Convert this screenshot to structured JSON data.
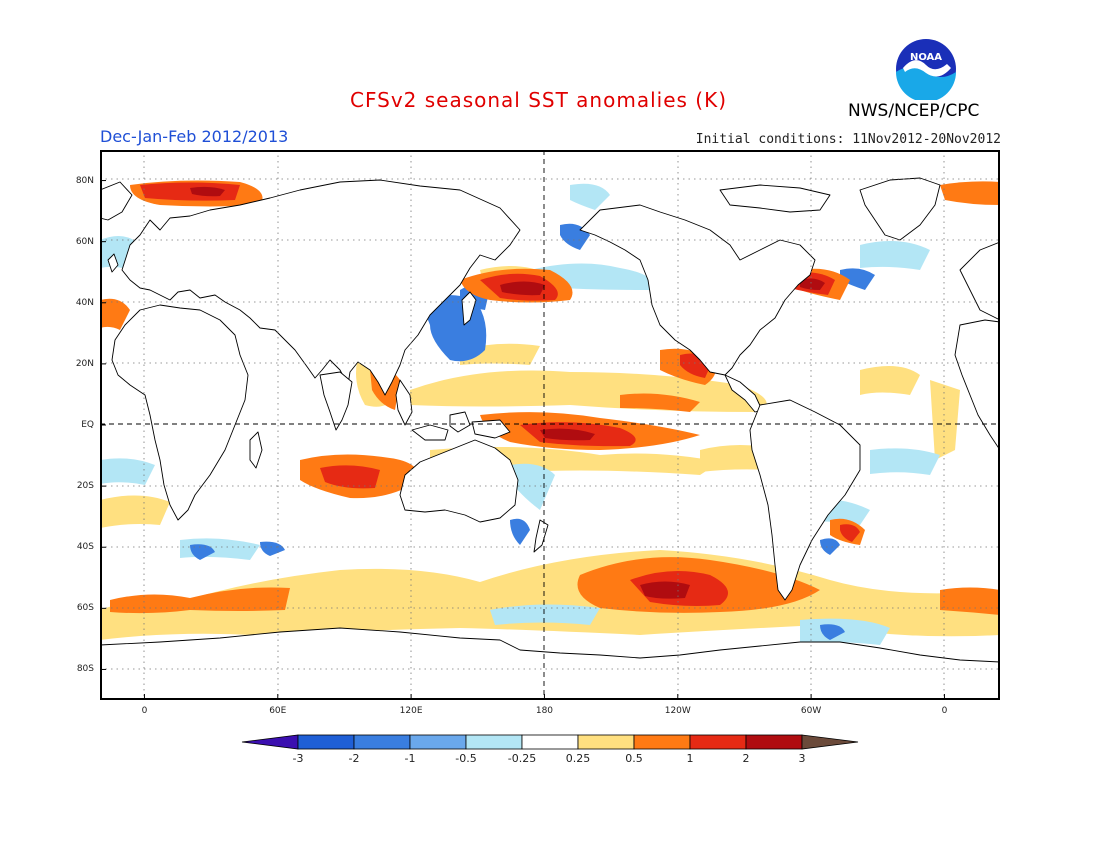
{
  "header": {
    "title": "CFSv2 seasonal SST anomalies (K)",
    "season": "Dec-Jan-Feb 2012/2013",
    "initial_conditions": "Initial conditions: 11Nov2012-20Nov2012",
    "agency": "NWS/NCEP/CPC",
    "logo_text": "NOAA"
  },
  "map": {
    "lat_labels": [
      {
        "text": "80N",
        "lat": 80
      },
      {
        "text": "60N",
        "lat": 60
      },
      {
        "text": "40N",
        "lat": 40
      },
      {
        "text": "20N",
        "lat": 20
      },
      {
        "text": "EQ",
        "lat": 0
      },
      {
        "text": "20S",
        "lat": -20
      },
      {
        "text": "40S",
        "lat": -40
      },
      {
        "text": "60S",
        "lat": -60
      },
      {
        "text": "80S",
        "lat": -80
      }
    ],
    "lon_labels": [
      {
        "text": "0",
        "lon": 0
      },
      {
        "text": "60E",
        "lon": 60
      },
      {
        "text": "120E",
        "lon": 120
      },
      {
        "text": "180",
        "lon": 180
      },
      {
        "text": "120W",
        "lon": 240
      },
      {
        "text": "60W",
        "lon": 300
      },
      {
        "text": "0",
        "lon": 360
      }
    ],
    "lon_range": [
      -20,
      385
    ],
    "lat_range": [
      -90,
      90
    ]
  },
  "colorbar": {
    "labels": [
      "-3",
      "-2",
      "-1",
      "-0.5",
      "-0.25",
      "0.25",
      "0.5",
      "1",
      "2",
      "3"
    ],
    "colors": [
      "#3b0fb0",
      "#1f5fd6",
      "#3a7ee0",
      "#6aa8ec",
      "#b3e6f5",
      "#ffffff",
      "#ffe080",
      "#ff7a14",
      "#e62a14",
      "#b00c10",
      "#6b4a3a"
    ]
  },
  "anomaly_colors": {
    "strong_warm": "#c80f0f",
    "warm": "#e84f12",
    "moderate_warm": "#ff7a14",
    "weak_warm": "#ffe080",
    "weak_cool": "#b3e6f5",
    "moderate_cool": "#6aa8ec",
    "cool": "#3a7ee0"
  }
}
